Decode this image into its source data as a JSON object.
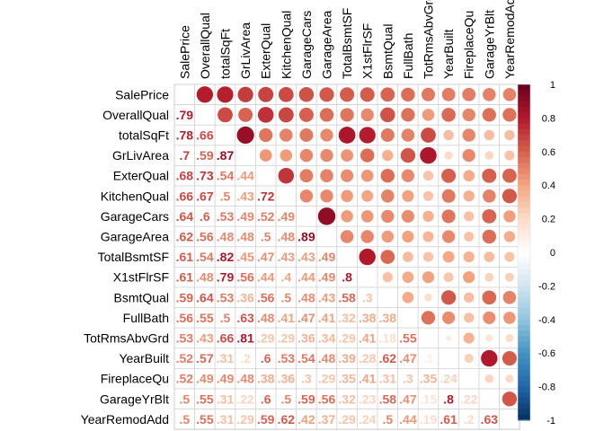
{
  "chart_data": {
    "type": "heatmap",
    "variables": [
      "SalePrice",
      "OverallQual",
      "totalSqFt",
      "GrLivArea",
      "ExterQual",
      "KitchenQual",
      "GarageCars",
      "GarageArea",
      "TotalBsmtSF",
      "X1stFlrSF",
      "BsmtQual",
      "FullBath",
      "TotRmsAbvGrd",
      "YearBuilt",
      "FireplaceQu",
      "GarageYrBlt",
      "YearRemodAdd"
    ],
    "matrix": [
      [
        1.0,
        0.79,
        0.78,
        0.7,
        0.68,
        0.66,
        0.64,
        0.62,
        0.61,
        0.61,
        0.59,
        0.56,
        0.53,
        0.52,
        0.52,
        0.5,
        0.5
      ],
      [
        0.79,
        1.0,
        0.66,
        0.59,
        0.73,
        0.67,
        0.6,
        0.56,
        0.54,
        0.48,
        0.64,
        0.55,
        0.43,
        0.57,
        0.49,
        0.55,
        0.55
      ],
      [
        0.78,
        0.66,
        1.0,
        0.87,
        0.54,
        0.5,
        0.53,
        0.48,
        0.82,
        0.79,
        0.53,
        0.5,
        0.66,
        0.31,
        0.49,
        0.31,
        0.31
      ],
      [
        0.7,
        0.59,
        0.87,
        1.0,
        0.44,
        0.43,
        0.49,
        0.48,
        0.45,
        0.56,
        0.36,
        0.63,
        0.81,
        0.2,
        0.48,
        0.22,
        0.29
      ],
      [
        0.68,
        0.73,
        0.54,
        0.44,
        1.0,
        0.72,
        0.52,
        0.5,
        0.47,
        0.44,
        0.56,
        0.48,
        0.29,
        0.6,
        0.38,
        0.6,
        0.59
      ],
      [
        0.66,
        0.67,
        0.5,
        0.43,
        0.72,
        1.0,
        0.49,
        0.48,
        0.43,
        0.4,
        0.5,
        0.41,
        0.29,
        0.53,
        0.36,
        0.5,
        0.62
      ],
      [
        0.64,
        0.6,
        0.53,
        0.49,
        0.52,
        0.49,
        1.0,
        0.89,
        0.43,
        0.44,
        0.48,
        0.47,
        0.36,
        0.54,
        0.3,
        0.59,
        0.42
      ],
      [
        0.62,
        0.56,
        0.48,
        0.48,
        0.5,
        0.48,
        0.89,
        1.0,
        0.49,
        0.49,
        0.43,
        0.41,
        0.34,
        0.48,
        0.29,
        0.56,
        0.37
      ],
      [
        0.61,
        0.54,
        0.82,
        0.45,
        0.47,
        0.43,
        0.43,
        0.49,
        1.0,
        0.8,
        0.58,
        0.32,
        0.29,
        0.39,
        0.35,
        0.32,
        0.29
      ],
      [
        0.61,
        0.48,
        0.79,
        0.56,
        0.44,
        0.4,
        0.44,
        0.49,
        0.8,
        1.0,
        0.3,
        0.38,
        0.41,
        0.28,
        0.41,
        0.23,
        0.24
      ],
      [
        0.59,
        0.64,
        0.53,
        0.36,
        0.56,
        0.5,
        0.48,
        0.43,
        0.58,
        0.3,
        1.0,
        0.38,
        0.18,
        0.62,
        0.31,
        0.58,
        0.5
      ],
      [
        0.56,
        0.55,
        0.5,
        0.63,
        0.48,
        0.41,
        0.47,
        0.41,
        0.32,
        0.38,
        0.38,
        1.0,
        0.55,
        0.47,
        0.3,
        0.47,
        0.44
      ],
      [
        0.53,
        0.43,
        0.66,
        0.81,
        0.29,
        0.29,
        0.36,
        0.34,
        0.29,
        0.41,
        0.18,
        0.55,
        1.0,
        0.1,
        0.35,
        0.15,
        0.19
      ],
      [
        0.52,
        0.57,
        0.31,
        0.2,
        0.6,
        0.53,
        0.54,
        0.48,
        0.39,
        0.28,
        0.62,
        0.47,
        0.1,
        1.0,
        0.24,
        0.8,
        0.61
      ],
      [
        0.52,
        0.49,
        0.49,
        0.48,
        0.38,
        0.36,
        0.3,
        0.29,
        0.35,
        0.41,
        0.31,
        0.3,
        0.35,
        0.24,
        1.0,
        0.22,
        0.2
      ],
      [
        0.5,
        0.55,
        0.31,
        0.22,
        0.6,
        0.5,
        0.59,
        0.56,
        0.32,
        0.23,
        0.58,
        0.47,
        0.15,
        0.8,
        0.22,
        1.0,
        0.63
      ],
      [
        0.5,
        0.55,
        0.31,
        0.29,
        0.59,
        0.62,
        0.42,
        0.37,
        0.29,
        0.24,
        0.5,
        0.44,
        0.19,
        0.61,
        0.2,
        0.63,
        1.0
      ]
    ],
    "upper_triangle": "circle",
    "lower_triangle": "number",
    "color_scale": {
      "range": [
        -1,
        1
      ],
      "ticks": [
        "1",
        "0.8",
        "0.6",
        "0.4",
        "0.2",
        "0",
        "-0.2",
        "-0.4",
        "-0.6",
        "-0.8",
        "-1"
      ],
      "colors": [
        "#67001F",
        "#B2182B",
        "#D6604D",
        "#F4A582",
        "#FDDBC7",
        "#FFFFFF",
        "#D1E5F0",
        "#92C5DE",
        "#4393C3",
        "#2166AC",
        "#053061"
      ]
    },
    "grid": true,
    "legend": "right"
  }
}
